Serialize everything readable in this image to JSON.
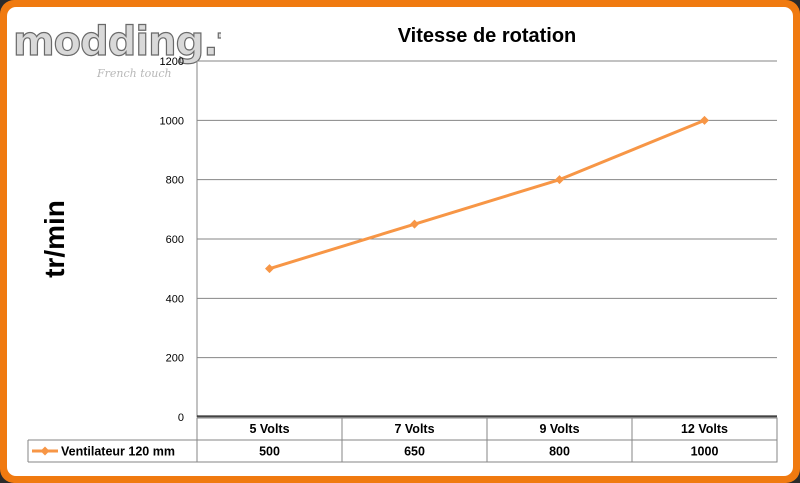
{
  "watermark": {
    "logo_text": "modding.fr",
    "tagline": "French touch"
  },
  "colors": {
    "frame": "#f07a10",
    "series": "#f79646",
    "grid": "#868686"
  },
  "chart_data": {
    "type": "line",
    "title": "Vitesse de rotation",
    "xlabel": "",
    "ylabel": "tr/min",
    "categories": [
      "5 Volts",
      "7 Volts",
      "9 Volts",
      "12 Volts"
    ],
    "series": [
      {
        "name": "Ventilateur 120 mm",
        "values": [
          500,
          650,
          800,
          1000
        ],
        "marker": "diamond"
      }
    ],
    "ylim": [
      0,
      1200
    ],
    "yticks": [
      0,
      200,
      400,
      600,
      800,
      1000,
      1200
    ],
    "grid": true,
    "legend": "data-table-left",
    "data_table": true
  }
}
